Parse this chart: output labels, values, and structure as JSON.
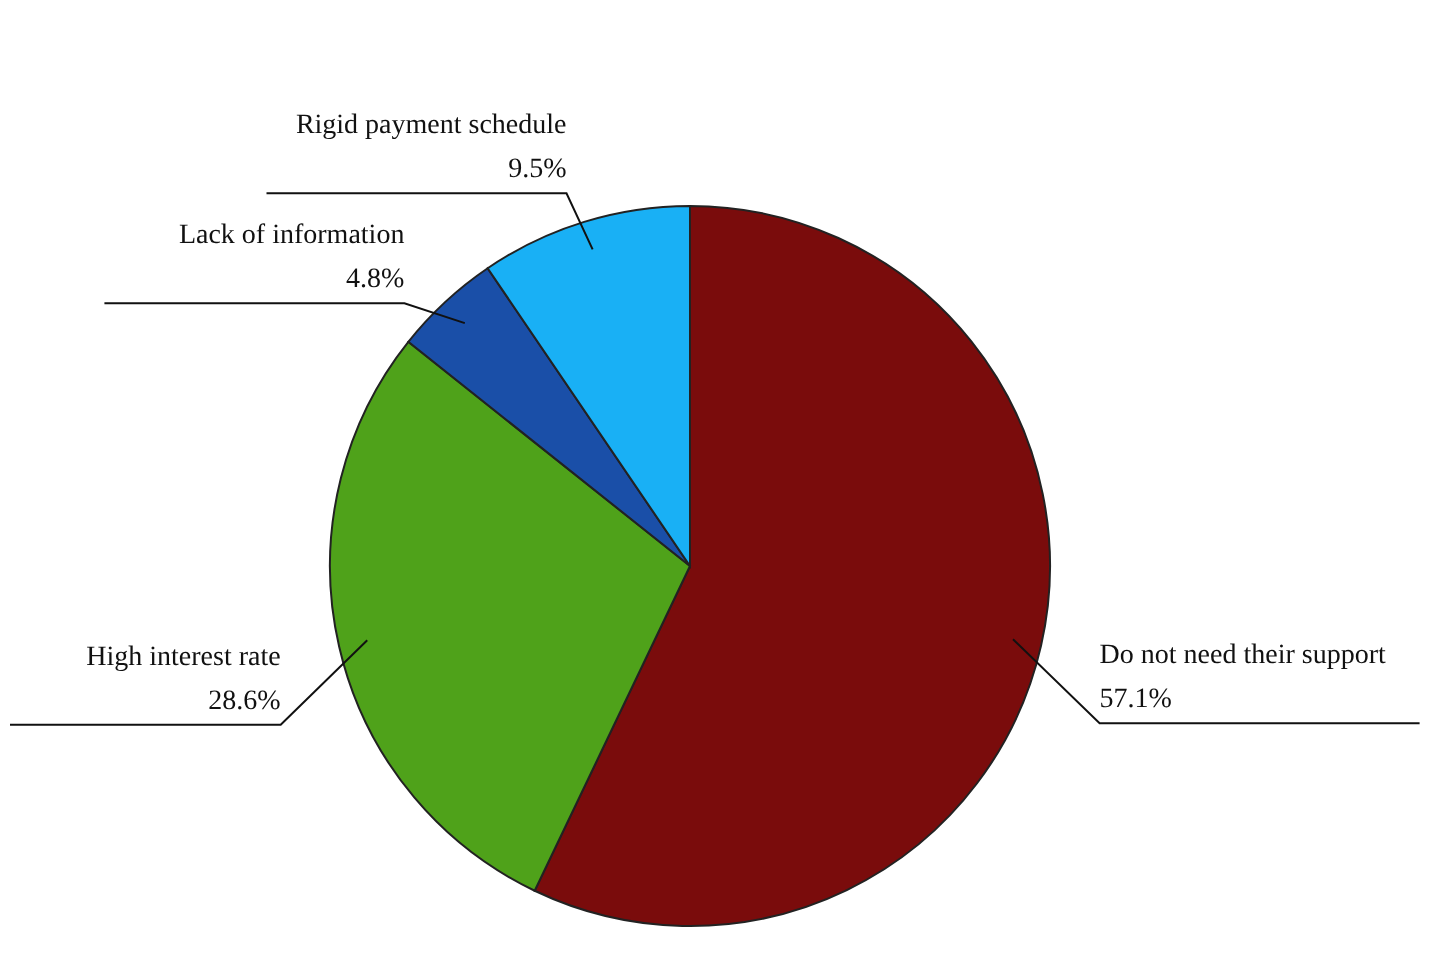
{
  "chart_data": {
    "type": "pie",
    "categories": [
      "Do not need their support",
      "High interest rate",
      "Lack of information",
      "Rigid payment schedule"
    ],
    "values": [
      57.1,
      28.6,
      4.8,
      9.5
    ],
    "value_labels": [
      "57.1%",
      "28.6%",
      "4.8%",
      "9.5%"
    ],
    "colors": [
      "#7a0c0c",
      "#4fa21a",
      "#1a4fa8",
      "#19b0f5"
    ]
  }
}
